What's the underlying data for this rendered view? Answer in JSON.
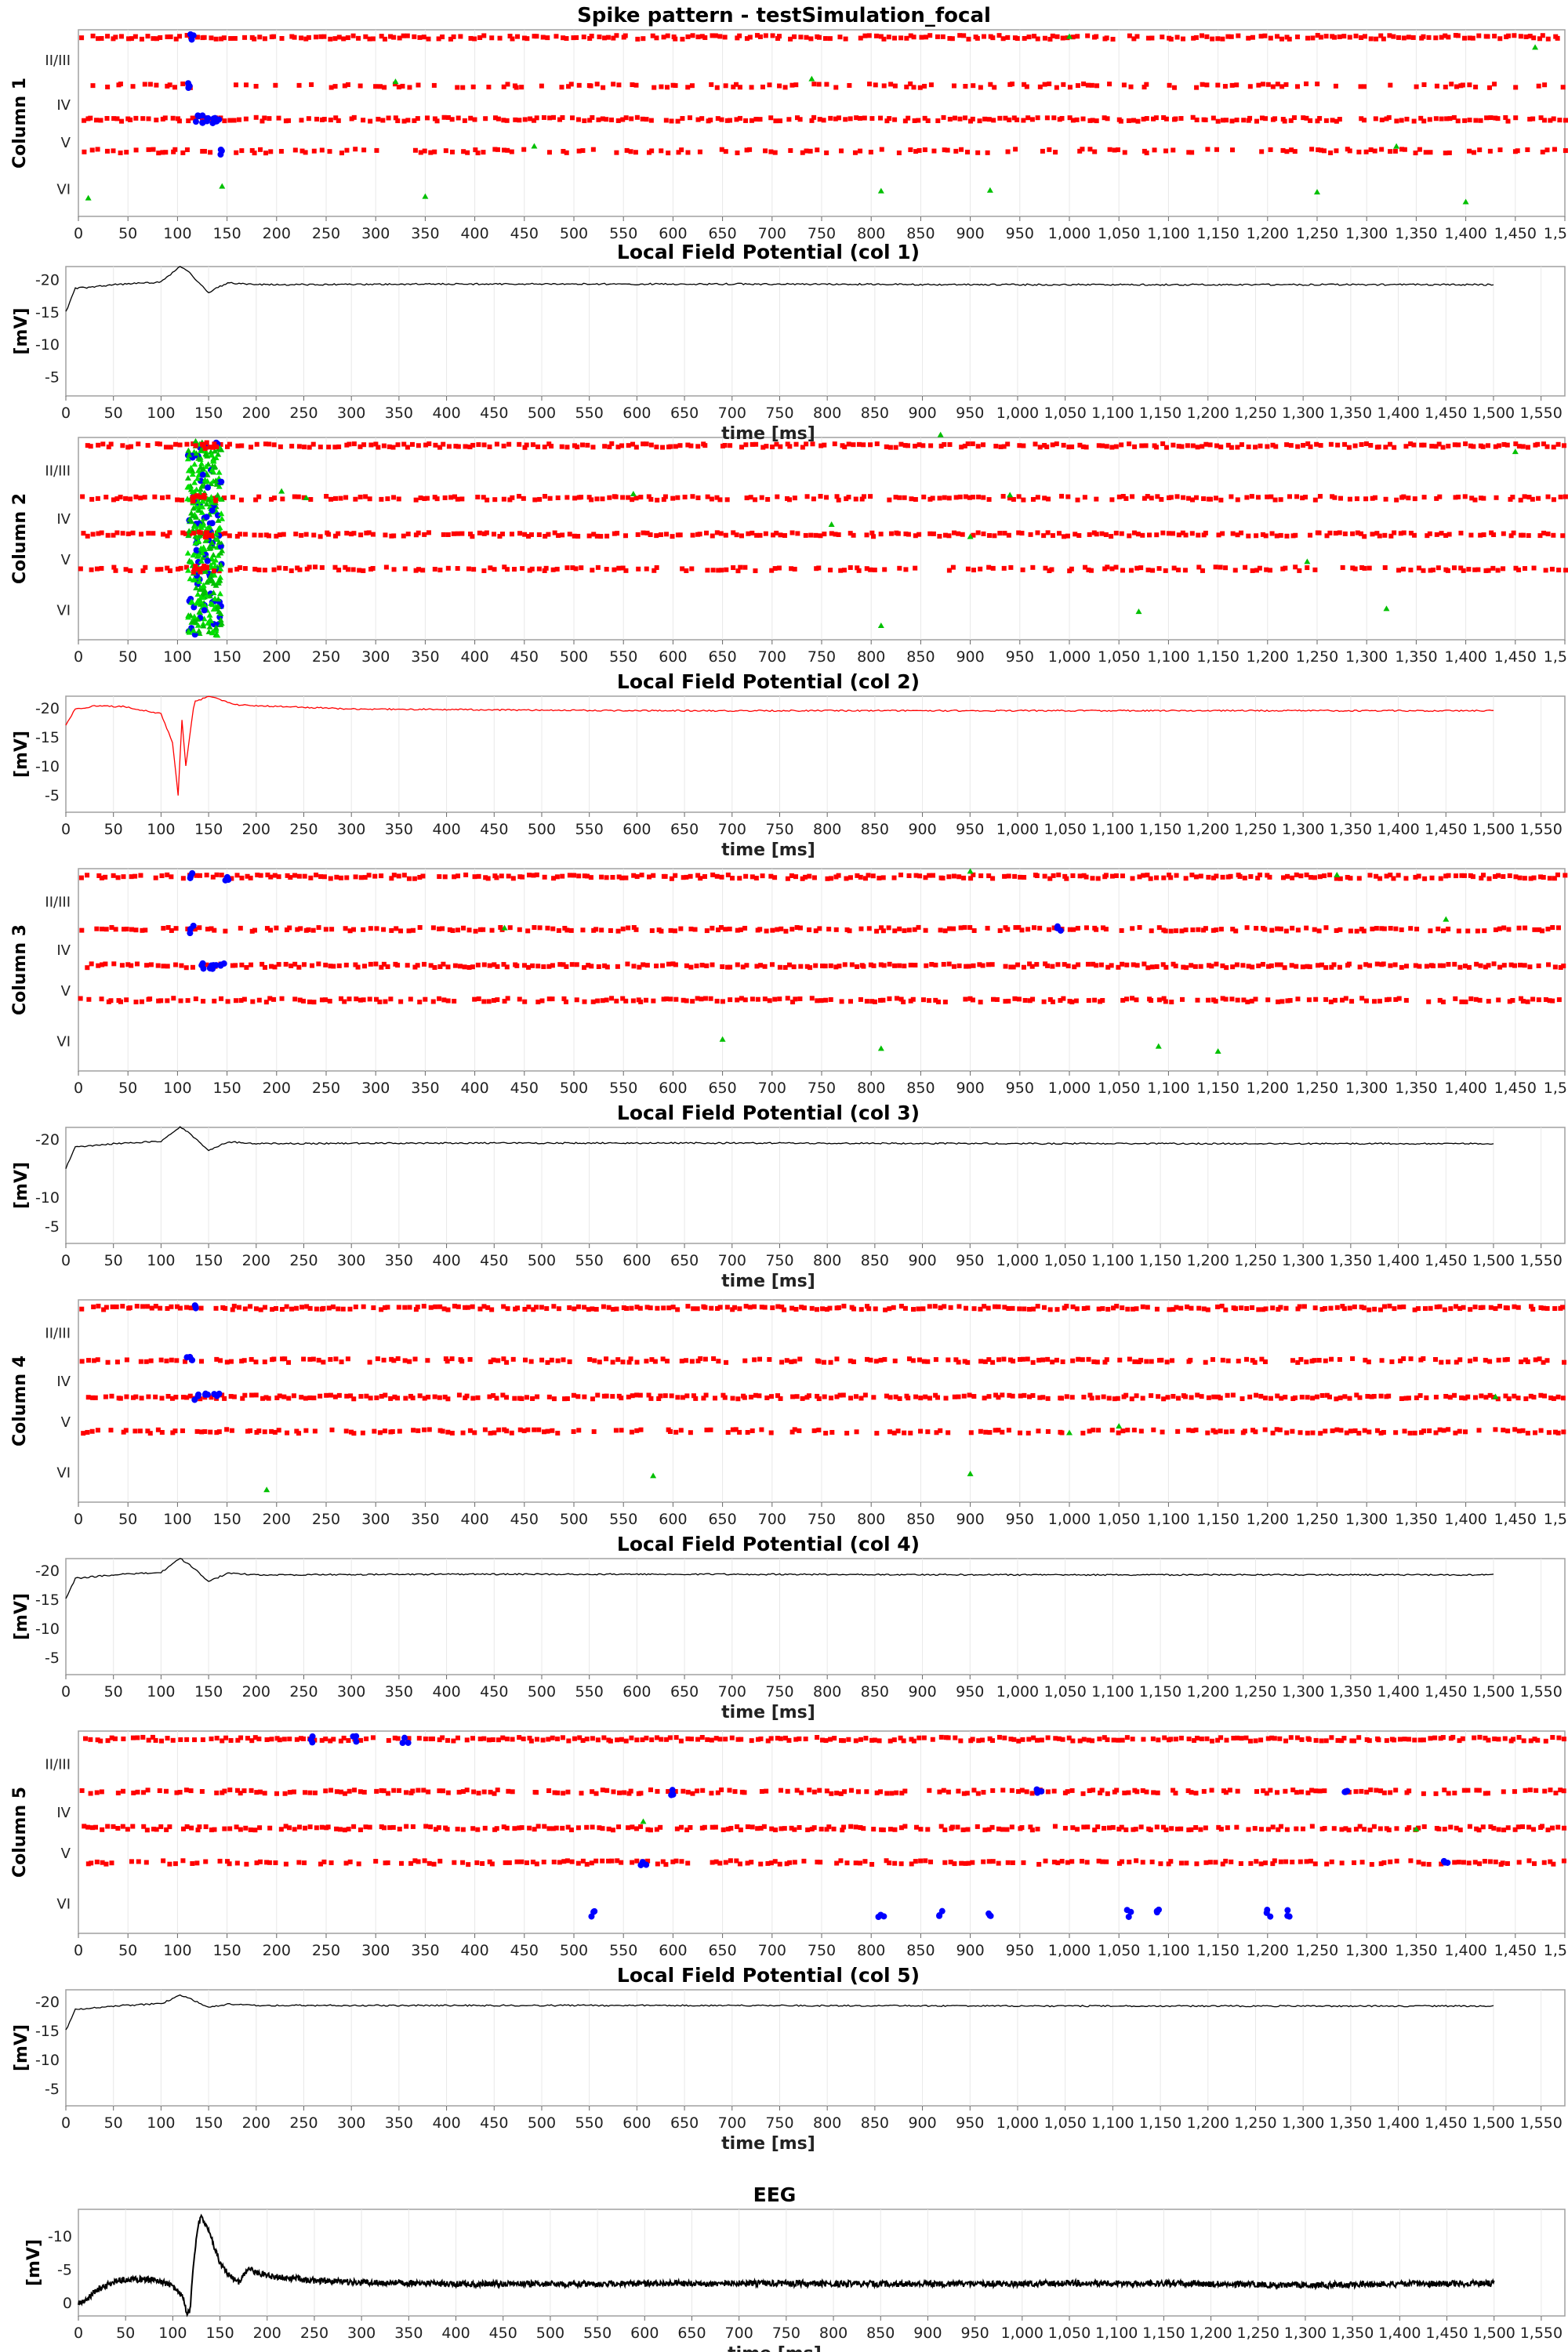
{
  "figure": {
    "title": "Spike pattern - testSimulation_focal"
  },
  "colors": {
    "excitatory": "#ff0000",
    "inhibitory": "#0000ff",
    "thalamic": "#00c000",
    "thalamic_bright": "#00e000",
    "lfp_default": "#000000",
    "lfp_focal": "#ff0000",
    "grid": "#e8e8e8",
    "frame": "#a0a0a0"
  },
  "chart_data": [
    {
      "id": "raster1",
      "type": "scatter",
      "title": "",
      "xlabel": "",
      "ylabel": "Column 1",
      "xlim": [
        0,
        1500
      ],
      "xtick_step": 50,
      "grid": "vertical",
      "layers": [
        "II/III",
        "IV",
        "V",
        "VI"
      ],
      "series": [
        {
          "name": "",
          "layer_rows": [
            {
              "layer": "II/III",
              "times": [
                0,
                1500
              ],
              "density": 0.9
            },
            {
              "layer": "IV",
              "times": [
                0,
                1500
              ],
              "density": 0.55
            },
            {
              "layer": "IV-V",
              "times": [
                0,
                1500
              ],
              "density": 0.9
            },
            {
              "layer": "V",
              "times": [
                0,
                1500
              ],
              "density": 0.6
            }
          ]
        },
        {
          "name": "",
          "points": [
            [
              115,
              "II/III"
            ],
            [
              112,
              "IV"
            ],
            [
              120,
              "IV-V"
            ],
            [
              125,
              "IV-V"
            ],
            [
              130,
              "IV-V"
            ],
            [
              135,
              "IV-V"
            ],
            [
              140,
              "IV-V"
            ],
            [
              142,
              "V"
            ]
          ]
        },
        {
          "name": "",
          "points": [
            [
              10,
              "VI"
            ],
            [
              145,
              "VI"
            ],
            [
              350,
              "VI"
            ],
            [
              320,
              "IV"
            ],
            [
              460,
              "V"
            ],
            [
              740,
              "IV"
            ],
            [
              810,
              "VI"
            ],
            [
              920,
              "VI"
            ],
            [
              1000,
              "II/III"
            ],
            [
              1250,
              "VI"
            ],
            [
              1330,
              "V"
            ],
            [
              1400,
              "VI"
            ],
            [
              1470,
              "II/III"
            ]
          ]
        }
      ]
    },
    {
      "id": "lfp1",
      "type": "line",
      "title": "Local Field Potential (col 1)",
      "xlabel": "time [ms]",
      "ylabel": "[mV]",
      "xlim": [
        0,
        1575
      ],
      "ylim": [
        -2,
        -22
      ],
      "yticks": [
        -20,
        -15,
        -10,
        -5
      ],
      "ytick_labels": [
        "-20",
        "-15",
        "-10",
        "-5"
      ],
      "series": [
        {
          "name": "",
          "x": [
            0,
            10,
            50,
            100,
            120,
            130,
            150,
            170,
            200,
            400,
            700,
            1000,
            1500
          ],
          "y": [
            -15,
            -18.6,
            -19.2,
            -19.6,
            -22,
            -21,
            -18,
            -19.5,
            -19.2,
            -19.3,
            -19.3,
            -19.2,
            -19.2
          ]
        }
      ]
    },
    {
      "id": "raster2",
      "type": "scatter",
      "title": "",
      "xlabel": "",
      "ylabel": "Column 2",
      "xlim": [
        0,
        1500
      ],
      "xtick_step": 50,
      "grid": "vertical",
      "layers": [
        "II/III",
        "IV",
        "V",
        "VI"
      ],
      "series": [
        {
          "name": "",
          "layer_rows": [
            {
              "layer": "II/III",
              "times": [
                0,
                1500
              ],
              "density": 0.9
            },
            {
              "layer": "IV",
              "times": [
                0,
                1500
              ],
              "density": 0.75
            },
            {
              "layer": "IV-V",
              "times": [
                0,
                1500
              ],
              "density": 0.9
            },
            {
              "layer": "V",
              "times": [
                0,
                1500
              ],
              "density": 0.7
            }
          ]
        },
        {
          "name": "",
          "burst": {
            "t_start": 110,
            "t_end": 145
          }
        },
        {
          "name": "",
          "points": [
            [
              205,
              "IV"
            ],
            [
              230,
              "IV"
            ],
            [
              560,
              "IV"
            ],
            [
              760,
              "IV-V"
            ],
            [
              810,
              "VI"
            ],
            [
              870,
              "II/III"
            ],
            [
              900,
              "IV-V"
            ],
            [
              940,
              "IV"
            ],
            [
              1070,
              "VI"
            ],
            [
              1240,
              "V"
            ],
            [
              1320,
              "VI"
            ],
            [
              1450,
              "II/III"
            ]
          ]
        }
      ]
    },
    {
      "id": "lfp2",
      "type": "line",
      "title": "Local Field Potential (col 2)",
      "xlabel": "time [ms]",
      "ylabel": "[mV]",
      "xlim": [
        0,
        1575
      ],
      "ylim": [
        -2,
        -22
      ],
      "yticks": [
        -20,
        -15,
        -10,
        -5
      ],
      "ytick_labels": [
        "-20",
        "-15",
        "-10",
        "-5"
      ],
      "series": [
        {
          "name": "",
          "x": [
            0,
            10,
            30,
            60,
            100,
            112,
            118,
            122,
            126,
            135,
            150,
            180,
            300,
            600,
            900,
            1200,
            1500
          ],
          "y": [
            -17,
            -19.8,
            -20.3,
            -20.2,
            -19,
            -14,
            -5,
            -18,
            -10,
            -21,
            -22,
            -20.5,
            -19.8,
            -19.5,
            -19.5,
            -19.5,
            -19.5
          ]
        }
      ]
    },
    {
      "id": "raster3",
      "type": "scatter",
      "title": "",
      "xlabel": "",
      "ylabel": "Column 3",
      "xlim": [
        0,
        1500
      ],
      "xtick_step": 50,
      "grid": "vertical",
      "layers": [
        "II/III",
        "IV",
        "V",
        "VI"
      ],
      "series": [
        {
          "name": "",
          "layer_rows": [
            {
              "layer": "II/III",
              "times": [
                0,
                1500
              ],
              "density": 0.9
            },
            {
              "layer": "IV",
              "times": [
                0,
                1500
              ],
              "density": 0.8
            },
            {
              "layer": "IV-V",
              "times": [
                0,
                1500
              ],
              "density": 0.9
            },
            {
              "layer": "V",
              "times": [
                0,
                1500
              ],
              "density": 0.75
            }
          ]
        },
        {
          "name": "",
          "points": [
            [
              115,
              "II/III"
            ],
            [
              150,
              "II/III"
            ],
            [
              115,
              "IV"
            ],
            [
              125,
              "IV-V"
            ],
            [
              132,
              "IV-V"
            ],
            [
              138,
              "IV-V"
            ],
            [
              145,
              "IV-V"
            ],
            [
              990,
              "IV"
            ]
          ]
        },
        {
          "name": "",
          "points": [
            [
              430,
              "IV"
            ],
            [
              650,
              "VI"
            ],
            [
              810,
              "VI"
            ],
            [
              900,
              "II/III"
            ],
            [
              1090,
              "VI"
            ],
            [
              1150,
              "VI"
            ],
            [
              1270,
              "II/III"
            ],
            [
              1380,
              "IV"
            ]
          ]
        }
      ]
    },
    {
      "id": "lfp3",
      "type": "line",
      "title": "Local Field Potential (col 3)",
      "xlabel": "time [ms]",
      "ylabel": "[mV]",
      "xlim": [
        0,
        1575
      ],
      "ylim": [
        -2,
        -22
      ],
      "yticks": [
        -20,
        -10,
        -5
      ],
      "ytick_labels": [
        "-20",
        "-10",
        "-5"
      ],
      "series": [
        {
          "name": "",
          "x": [
            0,
            10,
            50,
            100,
            120,
            130,
            150,
            170,
            200,
            400,
            700,
            1000,
            1500
          ],
          "y": [
            -15,
            -18.6,
            -19.2,
            -19.6,
            -22,
            -21,
            -18,
            -19.5,
            -19.2,
            -19.3,
            -19.3,
            -19.2,
            -19.2
          ]
        }
      ]
    },
    {
      "id": "raster4",
      "type": "scatter",
      "title": "",
      "xlabel": "",
      "ylabel": "Column 4",
      "xlim": [
        0,
        1500
      ],
      "xtick_step": 50,
      "grid": "vertical",
      "layers": [
        "II/III",
        "IV",
        "V",
        "VI"
      ],
      "series": [
        {
          "name": "",
          "layer_rows": [
            {
              "layer": "II/III",
              "times": [
                0,
                1500
              ],
              "density": 0.9
            },
            {
              "layer": "IV",
              "times": [
                0,
                1500
              ],
              "density": 0.75
            },
            {
              "layer": "IV-V",
              "times": [
                0,
                1500
              ],
              "density": 0.9
            },
            {
              "layer": "V",
              "times": [
                0,
                1500
              ],
              "density": 0.7
            }
          ]
        },
        {
          "name": "",
          "points": [
            [
              120,
              "II/III"
            ],
            [
              112,
              "IV"
            ],
            [
              120,
              "IV-V"
            ],
            [
              130,
              "IV-V"
            ],
            [
              140,
              "IV-V"
            ]
          ]
        },
        {
          "name": "",
          "points": [
            [
              190,
              "VI"
            ],
            [
              580,
              "VI"
            ],
            [
              900,
              "VI"
            ],
            [
              1000,
              "V"
            ],
            [
              1050,
              "V"
            ],
            [
              1430,
              "IV-V"
            ]
          ]
        }
      ]
    },
    {
      "id": "lfp4",
      "type": "line",
      "title": "Local Field Potential (col 4)",
      "xlabel": "time [ms]",
      "ylabel": "[mV]",
      "xlim": [
        0,
        1575
      ],
      "ylim": [
        -2,
        -22
      ],
      "yticks": [
        -20,
        -15,
        -10,
        -5
      ],
      "ytick_labels": [
        "-20",
        "-15",
        "-10",
        "-5"
      ],
      "series": [
        {
          "name": "",
          "x": [
            0,
            10,
            50,
            100,
            120,
            130,
            150,
            170,
            200,
            400,
            700,
            1000,
            1500
          ],
          "y": [
            -15,
            -18.6,
            -19.2,
            -19.6,
            -22,
            -21,
            -18,
            -19.5,
            -19.2,
            -19.3,
            -19.3,
            -19.2,
            -19.2
          ]
        }
      ]
    },
    {
      "id": "raster5",
      "type": "scatter",
      "title": "",
      "xlabel": "",
      "ylabel": "Column 5",
      "xlim": [
        0,
        1500
      ],
      "xtick_step": 50,
      "grid": "vertical",
      "layers": [
        "II/III",
        "IV",
        "V",
        "VI"
      ],
      "series": [
        {
          "name": "",
          "layer_rows": [
            {
              "layer": "II/III",
              "times": [
                0,
                1500
              ],
              "density": 0.9
            },
            {
              "layer": "IV",
              "times": [
                0,
                1500
              ],
              "density": 0.75
            },
            {
              "layer": "IV-V",
              "times": [
                0,
                1500
              ],
              "density": 0.9
            },
            {
              "layer": "V",
              "times": [
                0,
                1500
              ],
              "density": 0.7
            }
          ]
        },
        {
          "name": "",
          "points": [
            [
              235,
              "II/III"
            ],
            [
              280,
              "II/III"
            ],
            [
              330,
              "II/III"
            ],
            [
              520,
              "VI"
            ],
            [
              570,
              "V"
            ],
            [
              600,
              "IV"
            ],
            [
              810,
              "VI"
            ],
            [
              870,
              "VI"
            ],
            [
              920,
              "VI"
            ],
            [
              970,
              "IV"
            ],
            [
              1060,
              "VI"
            ],
            [
              1090,
              "VI"
            ],
            [
              1200,
              "VI"
            ],
            [
              1220,
              "VI"
            ],
            [
              1280,
              "IV"
            ],
            [
              1380,
              "V"
            ]
          ]
        },
        {
          "name": "",
          "points": [
            [
              570,
              "IV-V"
            ],
            [
              1350,
              "IV-V"
            ]
          ]
        }
      ]
    },
    {
      "id": "lfp5",
      "type": "line",
      "title": "Local Field Potential (col 5)",
      "xlabel": "time [ms]",
      "ylabel": "[mV]",
      "xlim": [
        0,
        1575
      ],
      "ylim": [
        -2,
        -22
      ],
      "yticks": [
        -20,
        -15,
        -10,
        -5
      ],
      "ytick_labels": [
        "-20",
        "-15",
        "-10",
        "-5"
      ],
      "series": [
        {
          "name": "",
          "x": [
            0,
            10,
            50,
            100,
            120,
            130,
            150,
            170,
            200,
            400,
            700,
            1000,
            1500
          ],
          "y": [
            -15,
            -18.6,
            -19.2,
            -19.6,
            -21,
            -20.5,
            -19,
            -19.5,
            -19.3,
            -19.3,
            -19.3,
            -19.2,
            -19.2
          ]
        }
      ]
    },
    {
      "id": "eeg",
      "type": "line",
      "title": "EEG",
      "xlabel": "time [ms]",
      "ylabel": "[mV]",
      "xlim": [
        0,
        1575
      ],
      "ylim": [
        2,
        -14
      ],
      "yticks": [
        0,
        -5,
        -10
      ],
      "ytick_labels": [
        "0",
        "-5",
        "-10"
      ],
      "series": [
        {
          "name": "",
          "x": [
            0,
            5,
            20,
            40,
            60,
            80,
            100,
            110,
            115,
            118,
            122,
            126,
            130,
            140,
            150,
            160,
            170,
            180,
            200,
            250,
            300,
            400,
            500,
            700,
            900,
            1100,
            1200,
            1300,
            1400,
            1500
          ],
          "y": [
            0,
            0,
            -2,
            -3.2,
            -3.5,
            -3.5,
            -2.5,
            -1,
            1.5,
            1.6,
            -6,
            -11,
            -13,
            -10,
            -6,
            -4,
            -3,
            -5,
            -4,
            -3.3,
            -3,
            -2.8,
            -2.8,
            -2.9,
            -2.8,
            -2.9,
            -2.8,
            -2.6,
            -2.8,
            -2.9
          ]
        }
      ]
    }
  ]
}
